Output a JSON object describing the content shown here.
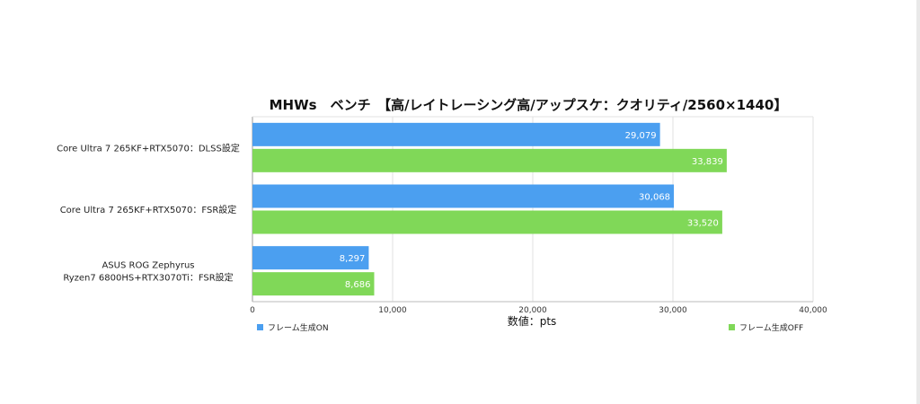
{
  "chart_data": {
    "type": "bar",
    "orientation": "horizontal",
    "title": "MHWs　ベンチ　【高/レイトレーシング高/アップスケ：クオリティ/2560×1440】",
    "categories": [
      "Core Ultra 7 265KF+RTX5070：DLSS設定",
      "Core Ultra 7 265KF+RTX5070：FSR設定",
      "ASUS ROG Zephyrus\nRyzen7 6800HS+RTX3070Ti：FSR設定"
    ],
    "series": [
      {
        "name": "フレーム生成ON",
        "color": "#4b9ff0",
        "values": [
          29079,
          30068,
          8297
        ],
        "labels": [
          "29,079",
          "30,068",
          "8,297"
        ]
      },
      {
        "name": "フレーム生成OFF",
        "color": "#80d858",
        "values": [
          33839,
          33520,
          8686
        ],
        "labels": [
          "33,839",
          "33,520",
          "8,686"
        ]
      }
    ],
    "xlabel": "数値：pts",
    "ylabel": "",
    "xlim": [
      0,
      40000
    ],
    "xticks": [
      0,
      10000,
      20000,
      30000,
      40000
    ],
    "xtick_labels": [
      "0",
      "10,000",
      "20,000",
      "30,000",
      "40,000"
    ],
    "grid": true,
    "legend_placement": "bottom"
  }
}
